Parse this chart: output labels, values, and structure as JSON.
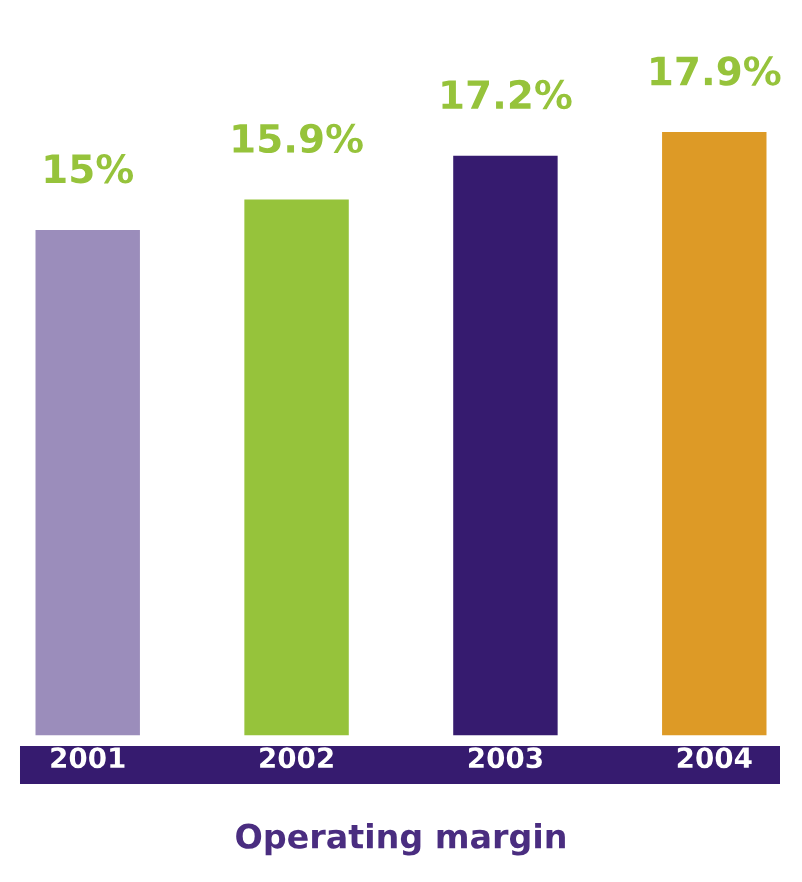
{
  "chart_data": {
    "type": "bar",
    "title": "Operating margin",
    "categories": [
      "2001",
      "2002",
      "2003",
      "2004"
    ],
    "values": [
      15,
      15.9,
      17.2,
      17.9
    ],
    "colors": [
      "#9b8dbb",
      "#96c33b",
      "#361b6f",
      "#dd9a26"
    ],
    "value_labels": [
      "15%",
      "15.9%",
      "17.2%",
      "17.9%"
    ],
    "grid": false,
    "legend": false
  }
}
